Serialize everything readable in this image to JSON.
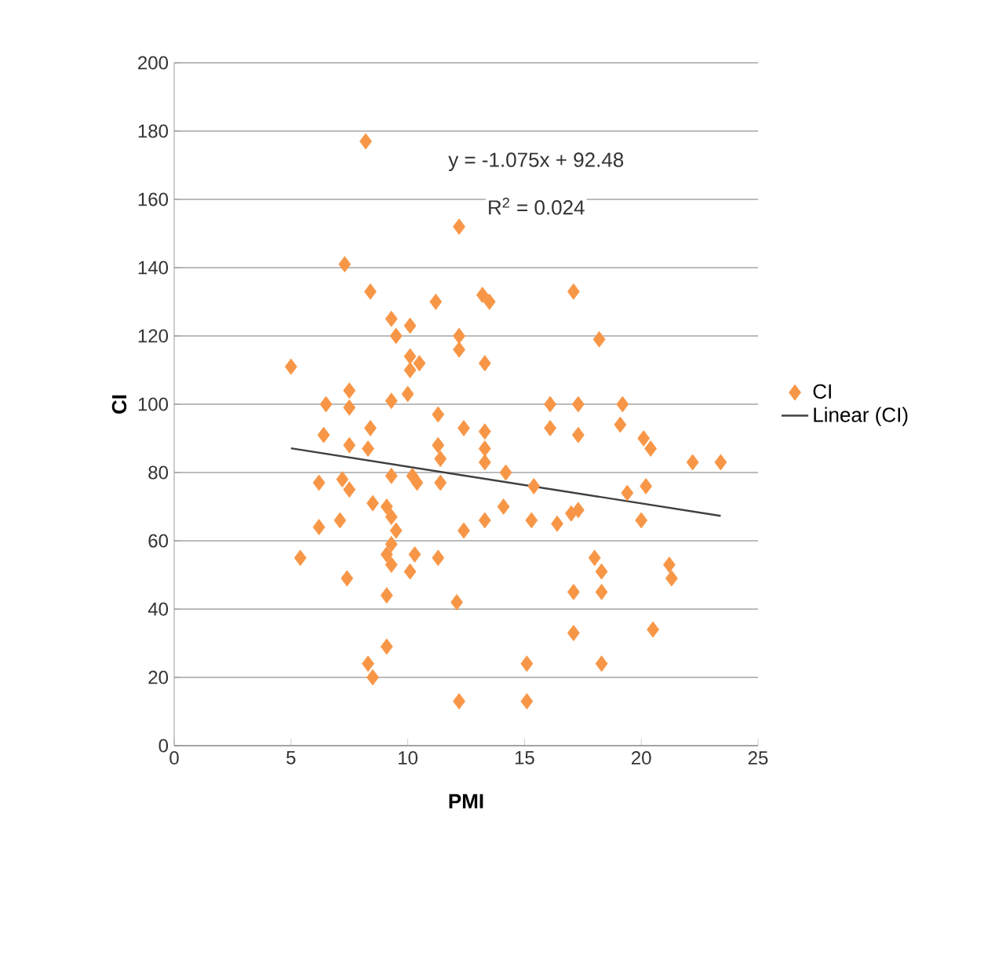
{
  "chart_data": {
    "type": "scatter",
    "xlabel": "PMI",
    "ylabel": "CI",
    "xlim": [
      0,
      25
    ],
    "xticks": [
      0,
      5,
      10,
      15,
      20,
      25
    ],
    "ylim": [
      0,
      200
    ],
    "yticks": [
      0,
      20,
      40,
      60,
      80,
      100,
      120,
      140,
      160,
      180,
      200
    ],
    "grid": "y",
    "legend": "right",
    "marker": "diamond",
    "annotations": [
      "y = -1.075x + 92.48",
      "R$^{2}$ = 0.024"
    ],
    "series": [
      {
        "name": "CI",
        "color": "#f79646",
        "x": [
          8.2,
          12.2,
          7.3,
          8.4,
          11.2,
          9.3,
          9.5,
          10.1,
          12.2,
          12.2,
          10.1,
          10.5,
          10.1,
          5.0,
          7.5,
          10.0,
          13.2,
          13.5,
          17.1,
          13.3,
          18.2,
          7.5,
          6.5,
          9.3,
          6.4,
          8.4,
          7.5,
          8.3,
          11.3,
          11.3,
          11.4,
          12.4,
          6.2,
          7.2,
          7.5,
          9.3,
          10.2,
          10.4,
          11.4,
          8.5,
          9.1,
          9.3,
          9.5,
          9.3,
          6.2,
          7.1,
          12.4,
          5.4,
          9.1,
          9.3,
          10.3,
          10.1,
          11.3,
          7.4,
          9.1,
          12.1,
          9.1,
          8.3,
          8.5,
          12.2,
          16.1,
          16.1,
          17.3,
          17.3,
          19.2,
          19.1,
          13.3,
          13.3,
          13.3,
          20.1,
          20.4,
          22.2,
          23.4,
          14.2,
          15.4,
          14.1,
          13.3,
          15.3,
          16.4,
          17.0,
          17.3,
          19.4,
          20.2,
          20.0,
          18.0,
          18.3,
          18.3,
          21.2,
          21.3,
          17.1,
          17.1,
          20.5,
          15.1,
          18.3,
          15.1
        ],
        "values": [
          177,
          152,
          141,
          133,
          130,
          125,
          120,
          123,
          120,
          116,
          114,
          112,
          110,
          111,
          104,
          103,
          132,
          130,
          133,
          112,
          119,
          99,
          100,
          101,
          91,
          93,
          88,
          87,
          97,
          88,
          84,
          93,
          77,
          78,
          75,
          79,
          79,
          77,
          77,
          71,
          70,
          67,
          63,
          59,
          64,
          66,
          63,
          55,
          56,
          53,
          56,
          51,
          55,
          49,
          44,
          42,
          29,
          24,
          20,
          13,
          100,
          93,
          100,
          91,
          100,
          94,
          92,
          87,
          83,
          90,
          87,
          83,
          83,
          80,
          76,
          70,
          66,
          66,
          65,
          68,
          69,
          74,
          76,
          66,
          55,
          51,
          45,
          53,
          49,
          45,
          33,
          34,
          24,
          24,
          13
        ]
      },
      {
        "name": "Linear (CI)",
        "type": "line",
        "color": "#404040",
        "marker": "none",
        "x": [
          5.0,
          23.4
        ],
        "values": [
          87.1,
          67.3
        ]
      }
    ]
  }
}
